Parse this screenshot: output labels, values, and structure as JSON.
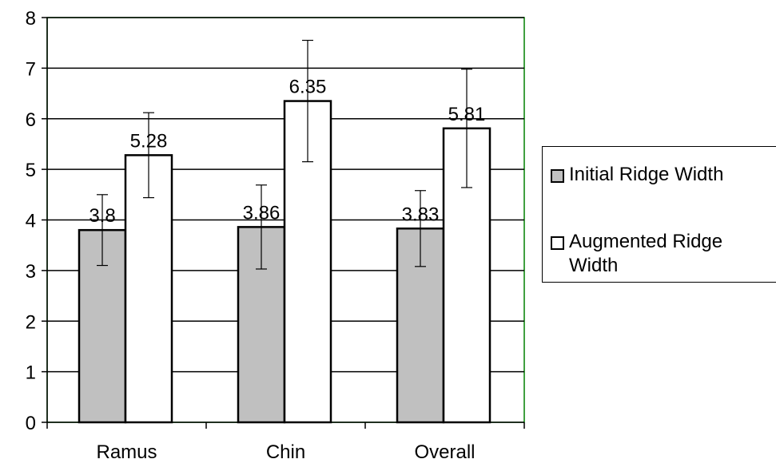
{
  "chart_data": {
    "type": "bar",
    "categories": [
      "Ramus",
      "Chin",
      "Overall"
    ],
    "series": [
      {
        "name": "Initial Ridge Width",
        "values": [
          3.8,
          3.86,
          3.83
        ],
        "error": [
          0.7,
          0.83,
          0.75
        ],
        "labels": [
          "3.8",
          "3.86",
          "3.83"
        ],
        "color": "#c0c0c0"
      },
      {
        "name": "Augmented Ridge Width",
        "values": [
          5.28,
          6.35,
          5.81
        ],
        "error": [
          0.84,
          1.2,
          1.17
        ],
        "labels": [
          "5.28",
          "6.35",
          "5.81"
        ],
        "color": "#ffffff"
      }
    ],
    "ylim": [
      0,
      8
    ],
    "yticks": [
      "0",
      "1",
      "2",
      "3",
      "4",
      "5",
      "6",
      "7",
      "8"
    ],
    "grid": true,
    "plot_border_color": "#008000",
    "legend_position": "right"
  }
}
